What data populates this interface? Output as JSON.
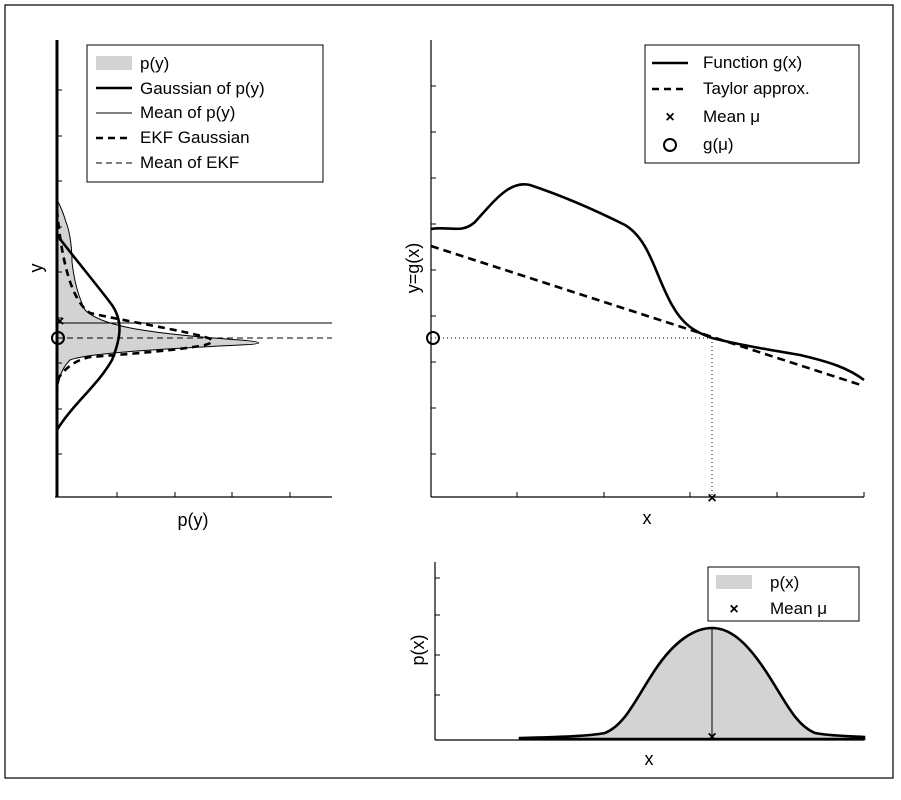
{
  "panels": {
    "left": {
      "xlabel": "p(y)",
      "ylabel": "y",
      "legend": [
        {
          "label": "p(y)",
          "style": "shaded"
        },
        {
          "label": "Gaussian of p(y)",
          "style": "thick-solid"
        },
        {
          "label": "Mean of p(y)",
          "style": "thin-solid"
        },
        {
          "label": "EKF Gaussian",
          "style": "thick-dashed"
        },
        {
          "label": "Mean of EKF",
          "style": "thin-dashed"
        }
      ]
    },
    "right": {
      "xlabel": "x",
      "ylabel": "y=g(x)",
      "legend": [
        {
          "label": "Function g(x)",
          "style": "thick-solid"
        },
        {
          "label": "Taylor approx.",
          "style": "thick-dashed"
        },
        {
          "label": "Mean μ",
          "style": "x-marker"
        },
        {
          "label": "g(μ)",
          "style": "o-marker"
        }
      ]
    },
    "bottom": {
      "xlabel": "x",
      "ylabel": "p(x)",
      "legend": [
        {
          "label": "p(x)",
          "style": "shaded"
        },
        {
          "label": "Mean μ",
          "style": "x-marker"
        }
      ]
    }
  },
  "colors": {
    "fill": "#d3d3d3",
    "line": "#000000",
    "frame": "#000000"
  }
}
